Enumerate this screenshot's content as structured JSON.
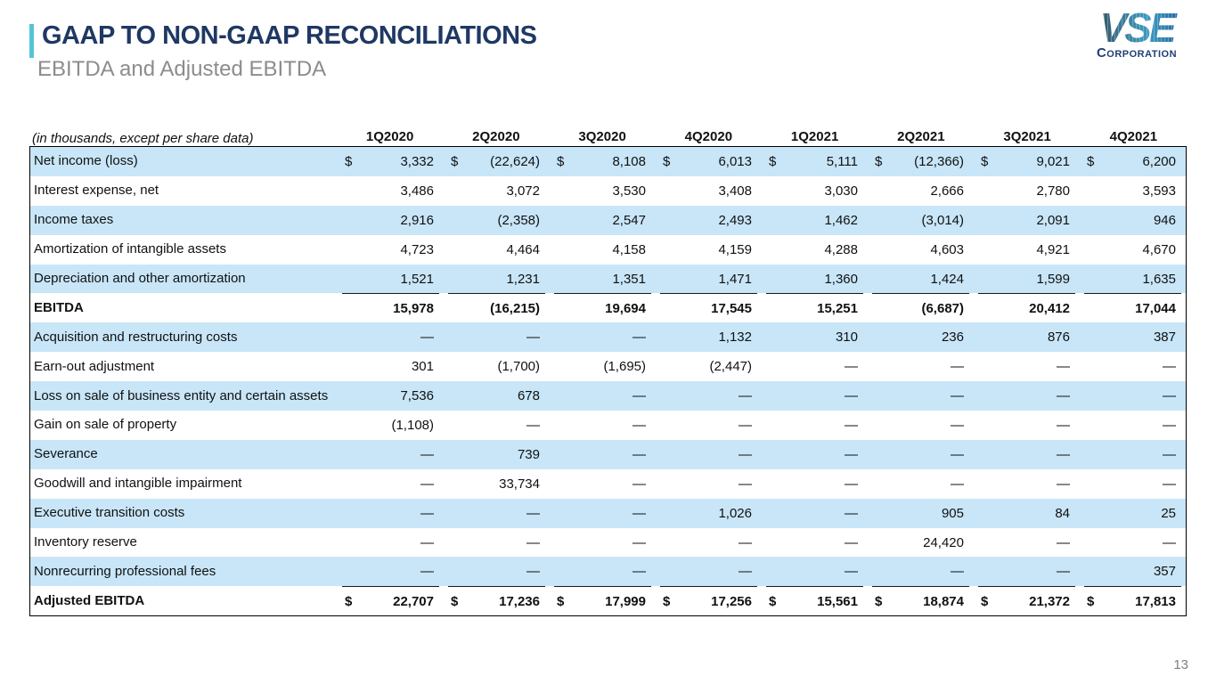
{
  "slide": {
    "title": "GAAP TO NON-GAAP RECONCILIATIONS",
    "subtitle": "EBITDA and Adjusted EBITDA",
    "page_number": "13",
    "logo": {
      "text": "VSE",
      "subtext": "Corporation"
    }
  },
  "colors": {
    "title_navy": "#1f3864",
    "accent_teal": "#55c4d8",
    "row_stripe_blue": "#c8e6f8",
    "subtitle_gray": "#8c8c8c",
    "page_number_gray": "#7f7f7f"
  },
  "table": {
    "note": "(in thousands, except per share data)",
    "currency_symbol": "$",
    "columns": [
      "1Q2020",
      "2Q2020",
      "3Q2020",
      "4Q2020",
      "1Q2021",
      "2Q2021",
      "3Q2021",
      "4Q2021"
    ],
    "rows": [
      {
        "label": "Net income (loss)",
        "dollar": true,
        "bold": false,
        "topline": false,
        "values": [
          "3,332",
          "(22,624)",
          "8,108",
          "6,013",
          "5,111",
          "(12,366)",
          "9,021",
          "6,200"
        ]
      },
      {
        "label": "Interest expense, net",
        "dollar": false,
        "bold": false,
        "topline": false,
        "values": [
          "3,486",
          "3,072",
          "3,530",
          "3,408",
          "3,030",
          "2,666",
          "2,780",
          "3,593"
        ]
      },
      {
        "label": "Income taxes",
        "dollar": false,
        "bold": false,
        "topline": false,
        "values": [
          "2,916",
          "(2,358)",
          "2,547",
          "2,493",
          "1,462",
          "(3,014)",
          "2,091",
          "946"
        ]
      },
      {
        "label": "Amortization of intangible assets",
        "dollar": false,
        "bold": false,
        "topline": false,
        "values": [
          "4,723",
          "4,464",
          "4,158",
          "4,159",
          "4,288",
          "4,603",
          "4,921",
          "4,670"
        ]
      },
      {
        "label": "Depreciation and other amortization",
        "dollar": false,
        "bold": false,
        "topline": false,
        "values": [
          "1,521",
          "1,231",
          "1,351",
          "1,471",
          "1,360",
          "1,424",
          "1,599",
          "1,635"
        ]
      },
      {
        "label": "EBITDA",
        "dollar": false,
        "bold": true,
        "topline": true,
        "values": [
          "15,978",
          "(16,215)",
          "19,694",
          "17,545",
          "15,251",
          "(6,687)",
          "20,412",
          "17,044"
        ]
      },
      {
        "label": "Acquisition and restructuring costs",
        "dollar": false,
        "bold": false,
        "topline": false,
        "values": [
          "—",
          "—",
          "—",
          "1,132",
          "310",
          "236",
          "876",
          "387"
        ]
      },
      {
        "label": "Earn-out adjustment",
        "dollar": false,
        "bold": false,
        "topline": false,
        "values": [
          "301",
          "(1,700)",
          "(1,695)",
          "(2,447)",
          "—",
          "—",
          "—",
          "—"
        ]
      },
      {
        "label": "Loss on sale of business entity and certain assets",
        "dollar": false,
        "bold": false,
        "topline": false,
        "values": [
          "7,536",
          "678",
          "—",
          "—",
          "—",
          "—",
          "—",
          "—"
        ]
      },
      {
        "label": "Gain on sale of property",
        "dollar": false,
        "bold": false,
        "topline": false,
        "values": [
          "(1,108)",
          "—",
          "—",
          "—",
          "—",
          "—",
          "—",
          "—"
        ]
      },
      {
        "label": "Severance",
        "dollar": false,
        "bold": false,
        "topline": false,
        "values": [
          "—",
          "739",
          "—",
          "—",
          "—",
          "—",
          "—",
          "—"
        ]
      },
      {
        "label": "Goodwill and intangible impairment",
        "dollar": false,
        "bold": false,
        "topline": false,
        "values": [
          "—",
          "33,734",
          "—",
          "—",
          "—",
          "—",
          "—",
          "—"
        ]
      },
      {
        "label": "Executive transition costs",
        "dollar": false,
        "bold": false,
        "topline": false,
        "values": [
          "—",
          "—",
          "—",
          "1,026",
          "—",
          "905",
          "84",
          "25"
        ]
      },
      {
        "label": "Inventory reserve",
        "dollar": false,
        "bold": false,
        "topline": false,
        "values": [
          "—",
          "—",
          "—",
          "—",
          "—",
          "24,420",
          "—",
          "—"
        ]
      },
      {
        "label": "Nonrecurring professional fees",
        "dollar": false,
        "bold": false,
        "topline": false,
        "values": [
          "—",
          "—",
          "—",
          "—",
          "—",
          "—",
          "—",
          "357"
        ]
      },
      {
        "label": "Adjusted EBITDA",
        "dollar": true,
        "bold": true,
        "topline": true,
        "values": [
          "22,707",
          "17,236",
          "17,999",
          "17,256",
          "15,561",
          "18,874",
          "21,372",
          "17,813"
        ]
      }
    ]
  }
}
